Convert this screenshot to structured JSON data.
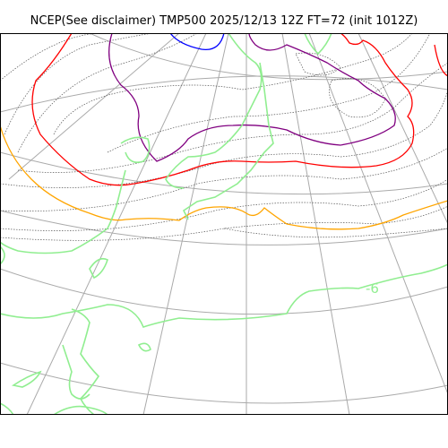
{
  "title": "NCEP(See disclaimer) TMP500 2025/12/13 12Z FT=72 (init 1012Z)",
  "contour_label": "-6",
  "colors": {
    "graticule": "#aaaaaa",
    "height_contours": "#555555",
    "coastline": "#90ee90",
    "isotherm_orange": "#ffa500",
    "isotherm_red": "#ff0000",
    "isotherm_purple": "#800080",
    "isotherm_blue": "#0000ff",
    "label": "#90ee90"
  }
}
